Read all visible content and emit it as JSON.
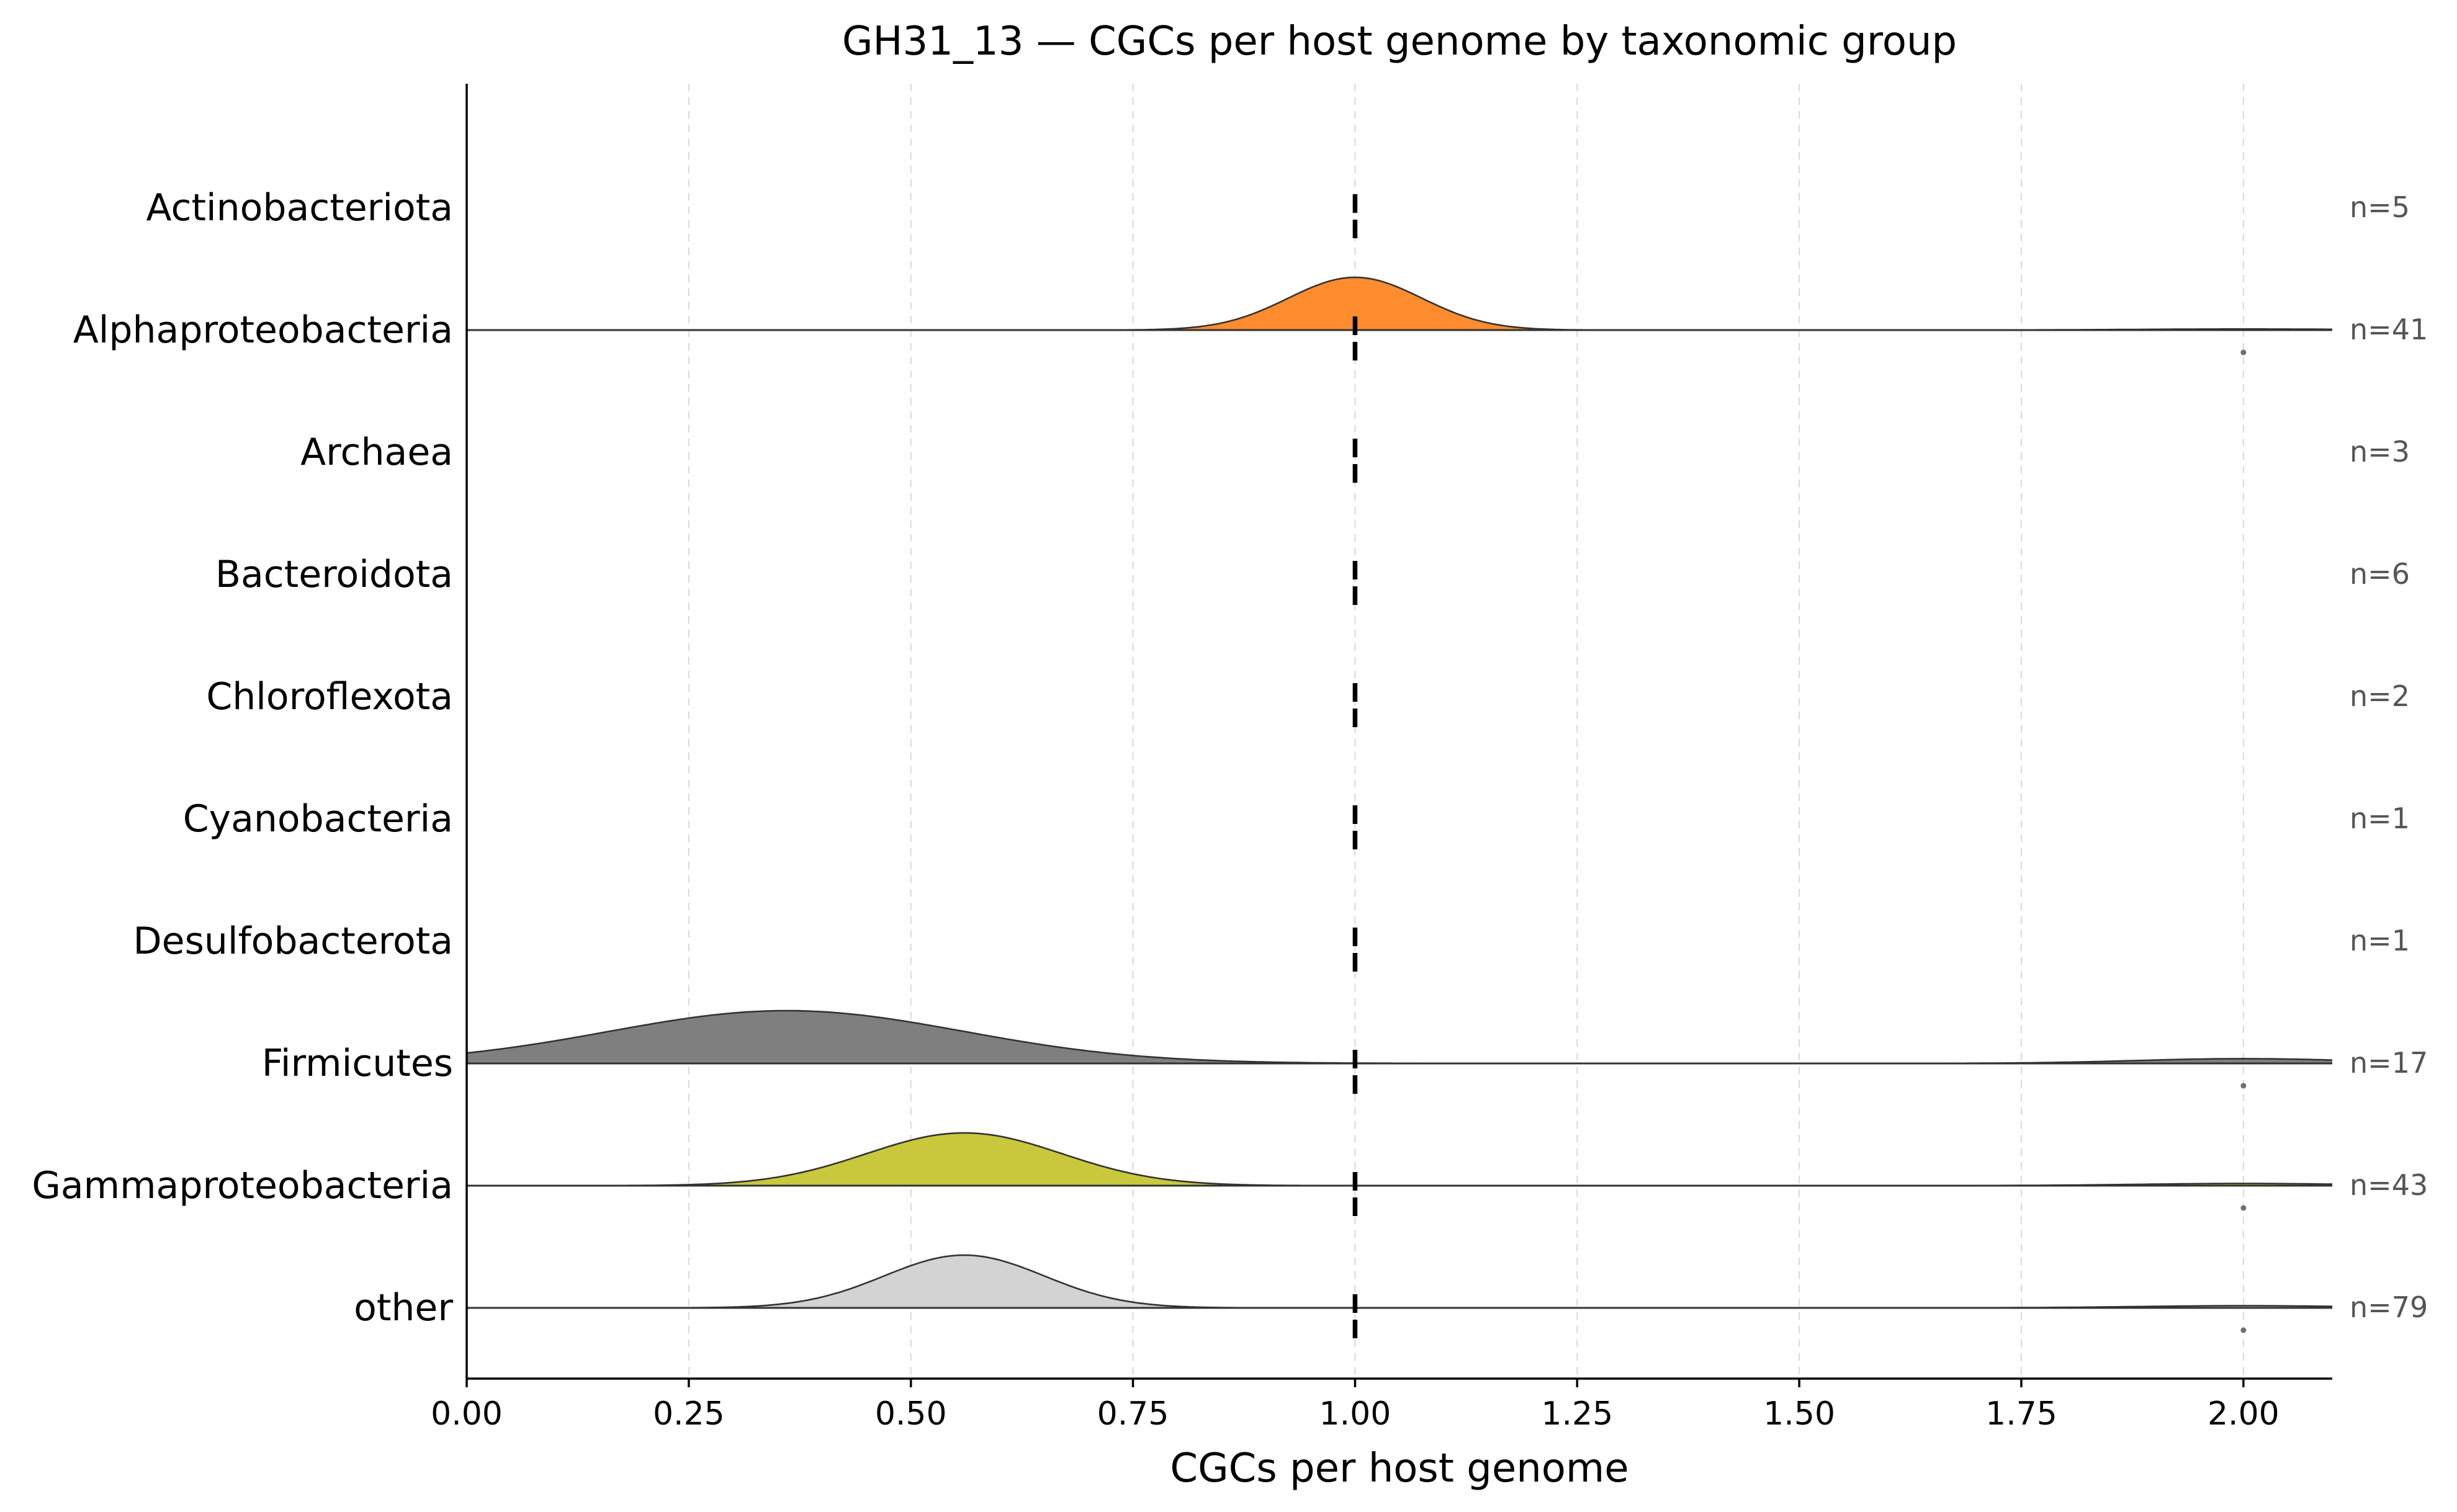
{
  "chart_data": {
    "type": "ridgeline",
    "title": "GH31_13 — CGCs per host genome by taxonomic group",
    "xlabel": "CGCs per host genome",
    "ylabel": "",
    "xlim": [
      0,
      2.1
    ],
    "xticks": [
      0,
      0.25,
      0.5,
      0.75,
      1,
      1.25,
      1.5,
      1.75,
      2
    ],
    "xtick_labels": [
      "0.00",
      "0.25",
      "0.50",
      "0.75",
      "1.00",
      "1.25",
      "1.50",
      "1.75",
      "2.00"
    ],
    "grid": "vertical-dashed",
    "groups": [
      {
        "name": "Actinobacteriota",
        "n_label": "n=5",
        "median": 1.0,
        "color": null,
        "peak": 1.0,
        "spread": 0.0,
        "tail": 0.0,
        "outliers": []
      },
      {
        "name": "Alphaproteobacteria",
        "n_label": "n=41",
        "median": 1.0,
        "color": "#ff8c2e",
        "peak": 1.0,
        "spread": 0.075,
        "tail": 0.02,
        "outliers": [
          2.0
        ]
      },
      {
        "name": "Archaea",
        "n_label": "n=3",
        "median": 1.0,
        "color": null,
        "peak": 1.0,
        "spread": 0.0,
        "tail": 0.0,
        "outliers": []
      },
      {
        "name": "Bacteroidota",
        "n_label": "n=6",
        "median": 1.0,
        "color": null,
        "peak": 1.0,
        "spread": 0.0,
        "tail": 0.0,
        "outliers": []
      },
      {
        "name": "Chloroflexota",
        "n_label": "n=2",
        "median": 1.0,
        "color": null,
        "peak": 1.0,
        "spread": 0.0,
        "tail": 0.0,
        "outliers": []
      },
      {
        "name": "Cyanobacteria",
        "n_label": "n=1",
        "median": 1.0,
        "color": null,
        "peak": 1.0,
        "spread": 0.0,
        "tail": 0.0,
        "outliers": []
      },
      {
        "name": "Desulfobacterota",
        "n_label": "n=1",
        "median": 1.0,
        "color": null,
        "peak": 1.0,
        "spread": 0.0,
        "tail": 0.0,
        "outliers": []
      },
      {
        "name": "Firmicutes",
        "n_label": "n=17",
        "median": 1.0,
        "color": "#7f7f7f",
        "peak": 0.36,
        "spread": 0.2,
        "tail": 0.09,
        "outliers": [
          2.0
        ]
      },
      {
        "name": "Gammaproteobacteria",
        "n_label": "n=43",
        "median": 1.0,
        "color": "#c9c83c",
        "peak": 0.56,
        "spread": 0.11,
        "tail": 0.04,
        "outliers": [
          2.0
        ]
      },
      {
        "name": "other",
        "n_label": "n=79",
        "median": 1.0,
        "color": "#d3d3d3",
        "peak": 0.56,
        "spread": 0.09,
        "tail": 0.04,
        "outliers": [
          2.0
        ]
      }
    ]
  }
}
